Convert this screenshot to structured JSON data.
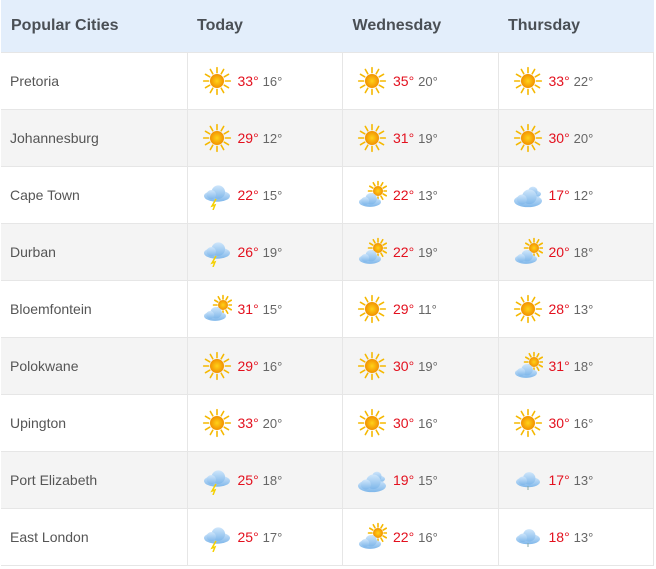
{
  "header": {
    "city": "Popular Cities",
    "days": [
      "Today",
      "Wednesday",
      "Thursday"
    ]
  },
  "colors": {
    "header_bg": "#e3eefb",
    "high_temp": "#e3101e",
    "low_temp": "#666666"
  },
  "rows": [
    {
      "city": "Pretoria",
      "f": [
        {
          "icon": "sunny",
          "hi": "33°",
          "lo": "16°"
        },
        {
          "icon": "sunny",
          "hi": "35°",
          "lo": "20°"
        },
        {
          "icon": "sunny",
          "hi": "33°",
          "lo": "22°"
        }
      ]
    },
    {
      "city": "Johannesburg",
      "f": [
        {
          "icon": "sunny",
          "hi": "29°",
          "lo": "12°"
        },
        {
          "icon": "sunny",
          "hi": "31°",
          "lo": "19°"
        },
        {
          "icon": "sunny",
          "hi": "30°",
          "lo": "20°"
        }
      ]
    },
    {
      "city": "Cape Town",
      "f": [
        {
          "icon": "thunder",
          "hi": "22°",
          "lo": "15°"
        },
        {
          "icon": "partly-cloudy",
          "hi": "22°",
          "lo": "13°"
        },
        {
          "icon": "cloudy",
          "hi": "17°",
          "lo": "12°"
        }
      ]
    },
    {
      "city": "Durban",
      "f": [
        {
          "icon": "thunder",
          "hi": "26°",
          "lo": "19°"
        },
        {
          "icon": "partly-cloudy",
          "hi": "22°",
          "lo": "19°"
        },
        {
          "icon": "partly-cloudy",
          "hi": "20°",
          "lo": "18°"
        }
      ]
    },
    {
      "city": "Bloemfontein",
      "f": [
        {
          "icon": "partly-cloudy",
          "hi": "31°",
          "lo": "15°"
        },
        {
          "icon": "sunny",
          "hi": "29°",
          "lo": "11°"
        },
        {
          "icon": "sunny",
          "hi": "28°",
          "lo": "13°"
        }
      ]
    },
    {
      "city": "Polokwane",
      "f": [
        {
          "icon": "sunny",
          "hi": "29°",
          "lo": "16°"
        },
        {
          "icon": "sunny",
          "hi": "30°",
          "lo": "19°"
        },
        {
          "icon": "partly-cloudy",
          "hi": "31°",
          "lo": "18°"
        }
      ]
    },
    {
      "city": "Upington",
      "f": [
        {
          "icon": "sunny",
          "hi": "33°",
          "lo": "20°"
        },
        {
          "icon": "sunny",
          "hi": "30°",
          "lo": "16°"
        },
        {
          "icon": "sunny",
          "hi": "30°",
          "lo": "16°"
        }
      ]
    },
    {
      "city": "Port Elizabeth",
      "f": [
        {
          "icon": "thunder",
          "hi": "25°",
          "lo": "18°"
        },
        {
          "icon": "cloudy",
          "hi": "19°",
          "lo": "15°"
        },
        {
          "icon": "drizzle",
          "hi": "17°",
          "lo": "13°"
        }
      ]
    },
    {
      "city": "East London",
      "f": [
        {
          "icon": "thunder",
          "hi": "25°",
          "lo": "17°"
        },
        {
          "icon": "partly-cloudy",
          "hi": "22°",
          "lo": "16°"
        },
        {
          "icon": "drizzle",
          "hi": "18°",
          "lo": "13°"
        }
      ]
    }
  ]
}
